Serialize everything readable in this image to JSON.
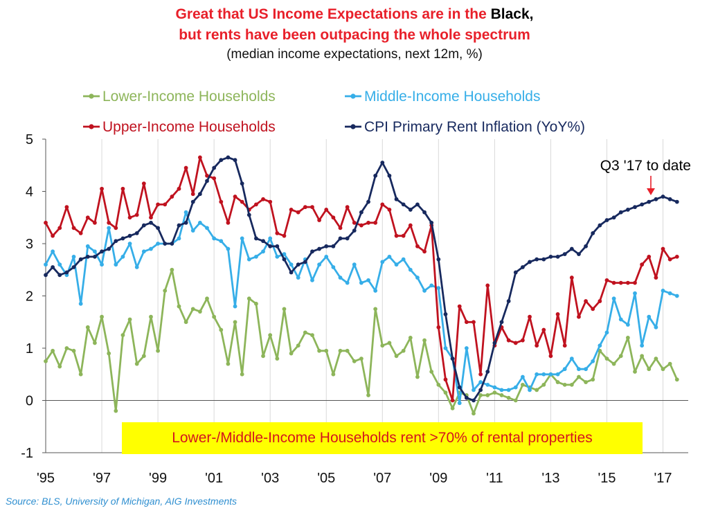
{
  "title": {
    "line1_red": "Great that US Income Expectations are in the",
    "line1_black": "Black,",
    "line2": "but rents have been outpacing the whole spectrum",
    "subtitle": "(median income expectations, next 12m, %)"
  },
  "annotation": "Q3 '17 to date",
  "callout": "Lower-/Middle-Income Households rent >70% of rental properties",
  "source": "Source:  BLS, University of Michigan, AIG Investments",
  "colors": {
    "title": "#e8202a",
    "callout_bg": "#ffff00",
    "callout_text": "#d4141e",
    "source": "#2f8fd0",
    "arrow": "#e8202a"
  },
  "chart_data": {
    "type": "line",
    "xlim": [
      1995,
      2017.9
    ],
    "ylim": [
      -1,
      5
    ],
    "yticks": [
      "-1",
      "0",
      "1",
      "2",
      "3",
      "4",
      "5"
    ],
    "xticks": [
      {
        "x": 1995,
        "label": "'95"
      },
      {
        "x": 1997,
        "label": "'97"
      },
      {
        "x": 1999,
        "label": "'99"
      },
      {
        "x": 2001,
        "label": "'01"
      },
      {
        "x": 2003,
        "label": "'03"
      },
      {
        "x": 2005,
        "label": "'05"
      },
      {
        "x": 2007,
        "label": "'07"
      },
      {
        "x": 2009,
        "label": "'09"
      },
      {
        "x": 2011,
        "label": "'11"
      },
      {
        "x": 2013,
        "label": "'13"
      },
      {
        "x": 2015,
        "label": "'15"
      },
      {
        "x": 2017,
        "label": "'17"
      }
    ],
    "grid": "vertical",
    "legend_placement": "top",
    "series": [
      {
        "name": "Lower-Income Households",
        "color": "#8db55a",
        "x": [
          1995,
          1995.25,
          1995.5,
          1995.75,
          1996,
          1996.25,
          1996.5,
          1996.75,
          1997,
          1997.25,
          1997.5,
          1997.75,
          1998,
          1998.25,
          1998.5,
          1998.75,
          1999,
          1999.25,
          1999.5,
          1999.75,
          2000,
          2000.25,
          2000.5,
          2000.75,
          2001,
          2001.25,
          2001.5,
          2001.75,
          2002,
          2002.25,
          2002.5,
          2002.75,
          2003,
          2003.25,
          2003.5,
          2003.75,
          2004,
          2004.25,
          2004.5,
          2004.75,
          2005,
          2005.25,
          2005.5,
          2005.75,
          2006,
          2006.25,
          2006.5,
          2006.75,
          2007,
          2007.25,
          2007.5,
          2007.75,
          2008,
          2008.25,
          2008.5,
          2008.75,
          2009,
          2009.25,
          2009.5,
          2009.75,
          2010,
          2010.25,
          2010.5,
          2010.75,
          2011,
          2011.25,
          2011.5,
          2011.75,
          2012,
          2012.25,
          2012.5,
          2012.75,
          2013,
          2013.25,
          2013.5,
          2013.75,
          2014,
          2014.25,
          2014.5,
          2014.75,
          2015,
          2015.25,
          2015.5,
          2015.75,
          2016,
          2016.25,
          2016.5,
          2016.75,
          2017,
          2017.25,
          2017.5
        ],
        "y": [
          0.75,
          0.95,
          0.65,
          1,
          0.95,
          0.5,
          1.4,
          1.1,
          1.6,
          0.9,
          -0.2,
          1.25,
          1.55,
          0.7,
          0.85,
          1.6,
          0.95,
          2.1,
          2.5,
          1.8,
          1.5,
          1.75,
          1.7,
          1.95,
          1.6,
          1.35,
          0.7,
          1.5,
          0.5,
          1.95,
          1.85,
          0.85,
          1.25,
          0.8,
          1.75,
          0.9,
          1.05,
          1.3,
          1.25,
          0.95,
          0.95,
          0.5,
          0.95,
          0.95,
          0.75,
          0.8,
          0.1,
          1.75,
          1.05,
          1.1,
          0.85,
          0.95,
          1.2,
          0.45,
          1.15,
          0.55,
          0.3,
          0.15,
          -0.15,
          0.15,
          0.1,
          -0.25,
          0.1,
          0.1,
          0.15,
          0.1,
          0.05,
          0,
          0.3,
          0.25,
          0.2,
          0.3,
          0.5,
          0.35,
          0.3,
          0.3,
          0.45,
          0.35,
          0.4,
          0.95,
          0.8,
          0.7,
          0.85,
          1.2,
          0.55,
          0.85,
          0.6,
          0.8,
          0.6,
          0.7,
          0.4
        ]
      },
      {
        "name": "Middle-Income Households",
        "color": "#36aee8",
        "x": [
          1995,
          1995.25,
          1995.5,
          1995.75,
          1996,
          1996.25,
          1996.5,
          1996.75,
          1997,
          1997.25,
          1997.5,
          1997.75,
          1998,
          1998.25,
          1998.5,
          1998.75,
          1999,
          1999.25,
          1999.5,
          1999.75,
          2000,
          2000.25,
          2000.5,
          2000.75,
          2001,
          2001.25,
          2001.5,
          2001.75,
          2002,
          2002.25,
          2002.5,
          2002.75,
          2003,
          2003.25,
          2003.5,
          2003.75,
          2004,
          2004.25,
          2004.5,
          2004.75,
          2005,
          2005.25,
          2005.5,
          2005.75,
          2006,
          2006.25,
          2006.5,
          2006.75,
          2007,
          2007.25,
          2007.5,
          2007.75,
          2008,
          2008.25,
          2008.5,
          2008.75,
          2009,
          2009.25,
          2009.5,
          2009.75,
          2010,
          2010.25,
          2010.5,
          2010.75,
          2011,
          2011.25,
          2011.5,
          2011.75,
          2012,
          2012.25,
          2012.5,
          2012.75,
          2013,
          2013.25,
          2013.5,
          2013.75,
          2014,
          2014.25,
          2014.5,
          2014.75,
          2015,
          2015.25,
          2015.5,
          2015.75,
          2016,
          2016.25,
          2016.5,
          2016.75,
          2017,
          2017.25,
          2017.5
        ],
        "y": [
          2.6,
          2.85,
          2.6,
          2.4,
          2.75,
          1.85,
          2.95,
          2.85,
          2.6,
          3.3,
          2.6,
          2.75,
          3,
          2.55,
          2.85,
          2.9,
          3,
          3,
          3,
          3.1,
          3.6,
          3.25,
          3.4,
          3.3,
          3.1,
          3.05,
          2.9,
          1.8,
          3.1,
          2.7,
          2.75,
          2.85,
          3.1,
          2.75,
          2.8,
          2.6,
          2.35,
          2.7,
          2.3,
          2.6,
          2.75,
          2.55,
          2.35,
          2.25,
          2.6,
          2.25,
          2.3,
          2.1,
          2.65,
          2.75,
          2.6,
          2.7,
          2.5,
          2.35,
          2.1,
          2.2,
          2.15,
          1,
          0.8,
          -0.05,
          1,
          0.2,
          0.35,
          0.3,
          0.25,
          0.2,
          0.2,
          0.25,
          0.45,
          0.2,
          0.5,
          0.5,
          0.5,
          0.5,
          0.6,
          0.8,
          0.6,
          0.6,
          0.75,
          1.05,
          1.3,
          1.95,
          1.55,
          1.45,
          2.05,
          1.05,
          1.6,
          1.4,
          2.1,
          2.05,
          2
        ]
      },
      {
        "name": "Upper-Income Households",
        "color": "#c0121f",
        "x": [
          1995,
          1995.25,
          1995.5,
          1995.75,
          1996,
          1996.25,
          1996.5,
          1996.75,
          1997,
          1997.25,
          1997.5,
          1997.75,
          1998,
          1998.25,
          1998.5,
          1998.75,
          1999,
          1999.25,
          1999.5,
          1999.75,
          2000,
          2000.25,
          2000.5,
          2000.75,
          2001,
          2001.25,
          2001.5,
          2001.75,
          2002,
          2002.25,
          2002.5,
          2002.75,
          2003,
          2003.25,
          2003.5,
          2003.75,
          2004,
          2004.25,
          2004.5,
          2004.75,
          2005,
          2005.25,
          2005.5,
          2005.75,
          2006,
          2006.25,
          2006.5,
          2006.75,
          2007,
          2007.25,
          2007.5,
          2007.75,
          2008,
          2008.25,
          2008.5,
          2008.75,
          2009,
          2009.25,
          2009.5,
          2009.75,
          2010,
          2010.25,
          2010.5,
          2010.75,
          2011,
          2011.25,
          2011.5,
          2011.75,
          2012,
          2012.25,
          2012.5,
          2012.75,
          2013,
          2013.25,
          2013.5,
          2013.75,
          2014,
          2014.25,
          2014.5,
          2014.75,
          2015,
          2015.25,
          2015.5,
          2015.75,
          2016,
          2016.25,
          2016.5,
          2016.75,
          2017,
          2017.25,
          2017.5
        ],
        "y": [
          3.4,
          3.15,
          3.3,
          3.7,
          3.3,
          3.2,
          3.5,
          3.4,
          4.05,
          3.4,
          3.3,
          4.05,
          3.5,
          3.55,
          4.15,
          3.5,
          3.75,
          3.75,
          3.9,
          4.05,
          4.45,
          3.95,
          4.65,
          4.3,
          4.25,
          3.8,
          3.4,
          3.9,
          3.8,
          3.65,
          3.75,
          3.85,
          3.8,
          3.2,
          3.15,
          3.65,
          3.6,
          3.7,
          3.7,
          3.45,
          3.65,
          3.5,
          3.3,
          3.7,
          3.4,
          3.35,
          3.4,
          3.4,
          3.75,
          3.65,
          3.15,
          3.15,
          3.35,
          2.95,
          2.85,
          3.35,
          1.4,
          0.4,
          0,
          1.8,
          1.5,
          1.5,
          0.5,
          2.2,
          1.05,
          1.4,
          1.15,
          1.1,
          1.15,
          1.6,
          1.05,
          1.35,
          0.85,
          1.65,
          1.05,
          2.35,
          1.6,
          1.9,
          1.75,
          1.9,
          2.3,
          2.25,
          2.25,
          2.25,
          2.25,
          2.6,
          2.75,
          2.35,
          2.9,
          2.7,
          2.75
        ]
      },
      {
        "name": "CPI Primary Rent Inflation (YoY%)",
        "color": "#17295e",
        "x": [
          1995,
          1995.25,
          1995.5,
          1995.75,
          1996,
          1996.25,
          1996.5,
          1996.75,
          1997,
          1997.25,
          1997.5,
          1997.75,
          1998,
          1998.25,
          1998.5,
          1998.75,
          1999,
          1999.25,
          1999.5,
          1999.75,
          2000,
          2000.25,
          2000.5,
          2000.75,
          2001,
          2001.25,
          2001.5,
          2001.75,
          2002,
          2002.25,
          2002.5,
          2002.75,
          2003,
          2003.25,
          2003.5,
          2003.75,
          2004,
          2004.25,
          2004.5,
          2004.75,
          2005,
          2005.25,
          2005.5,
          2005.75,
          2006,
          2006.25,
          2006.5,
          2006.75,
          2007,
          2007.25,
          2007.5,
          2007.75,
          2008,
          2008.25,
          2008.5,
          2008.75,
          2009,
          2009.25,
          2009.5,
          2009.75,
          2010,
          2010.25,
          2010.5,
          2010.75,
          2011,
          2011.25,
          2011.5,
          2011.75,
          2012,
          2012.25,
          2012.5,
          2012.75,
          2013,
          2013.25,
          2013.5,
          2013.75,
          2014,
          2014.25,
          2014.5,
          2014.75,
          2015,
          2015.25,
          2015.5,
          2015.75,
          2016,
          2016.25,
          2016.5,
          2016.75,
          2017,
          2017.25,
          2017.5
        ],
        "y": [
          2.4,
          2.55,
          2.4,
          2.45,
          2.55,
          2.7,
          2.75,
          2.75,
          2.85,
          2.9,
          3.05,
          3.1,
          3.15,
          3.2,
          3.35,
          3.4,
          3.3,
          3,
          3,
          3.35,
          3.4,
          3.8,
          3.95,
          4.2,
          4.45,
          4.6,
          4.65,
          4.6,
          4.15,
          3.55,
          3.1,
          3.05,
          2.95,
          2.95,
          2.7,
          2.45,
          2.6,
          2.65,
          2.85,
          2.9,
          2.95,
          2.95,
          3.1,
          3.1,
          3.25,
          3.6,
          3.8,
          4.3,
          4.55,
          4.3,
          3.85,
          3.75,
          3.65,
          3.75,
          3.6,
          3.4,
          2.7,
          1.65,
          0.8,
          0.25,
          0.05,
          0,
          0.2,
          0.55,
          1.1,
          1.5,
          1.9,
          2.45,
          2.55,
          2.65,
          2.7,
          2.7,
          2.75,
          2.75,
          2.8,
          2.9,
          2.8,
          2.95,
          3.2,
          3.35,
          3.45,
          3.5,
          3.6,
          3.65,
          3.7,
          3.75,
          3.8,
          3.85,
          3.9,
          3.85,
          3.8
        ]
      }
    ]
  }
}
